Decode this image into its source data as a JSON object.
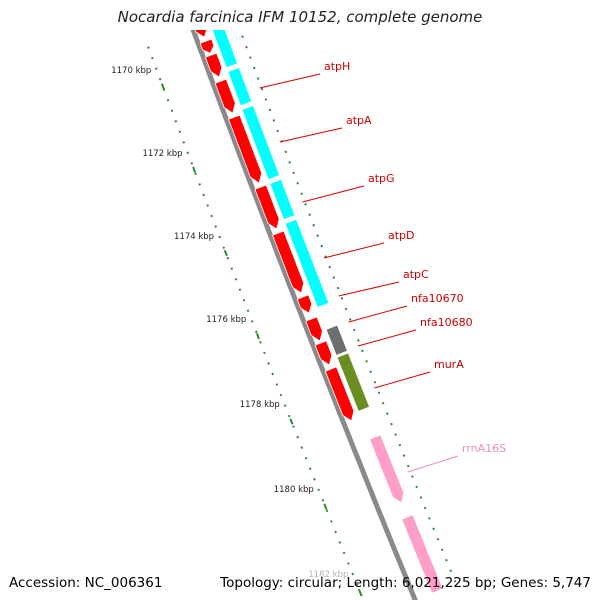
{
  "title": "Nocardia farcinica IFM 10152, complete genome",
  "footer": {
    "accession": "Accession: NC_006361",
    "summary": "Topology: circular; Length: 6,021,225 bp; Genes: 5,747"
  },
  "colors": {
    "backbone": "#8a8a8a",
    "cds": "#ff0000",
    "cds_other_strand": "#00ffff",
    "hypothetical": "#6e6e6e",
    "murA": "#6b8e23",
    "rRNA": "#ff9ec9",
    "tick": "#2e8b2e",
    "label_text": "#cc0000",
    "label_line": "#dd0000",
    "rRNA_label": "#f08cba"
  },
  "scale": {
    "unit": "kbp",
    "labels": [
      "1170 kbp",
      "1172 kbp",
      "1174 kbp",
      "1176 kbp",
      "1178 kbp",
      "1180 kbp",
      "1182 kbp"
    ]
  },
  "gene_labels": [
    {
      "name": "atpH",
      "kind": "cds"
    },
    {
      "name": "atpA",
      "kind": "cds"
    },
    {
      "name": "atpG",
      "kind": "cds"
    },
    {
      "name": "atpD",
      "kind": "cds"
    },
    {
      "name": "atpC",
      "kind": "cds"
    },
    {
      "name": "nfa10670",
      "kind": "cds"
    },
    {
      "name": "nfa10680",
      "kind": "cds"
    },
    {
      "name": "murA",
      "kind": "cds"
    },
    {
      "name": "rrnA16S",
      "kind": "rRNA"
    }
  ]
}
